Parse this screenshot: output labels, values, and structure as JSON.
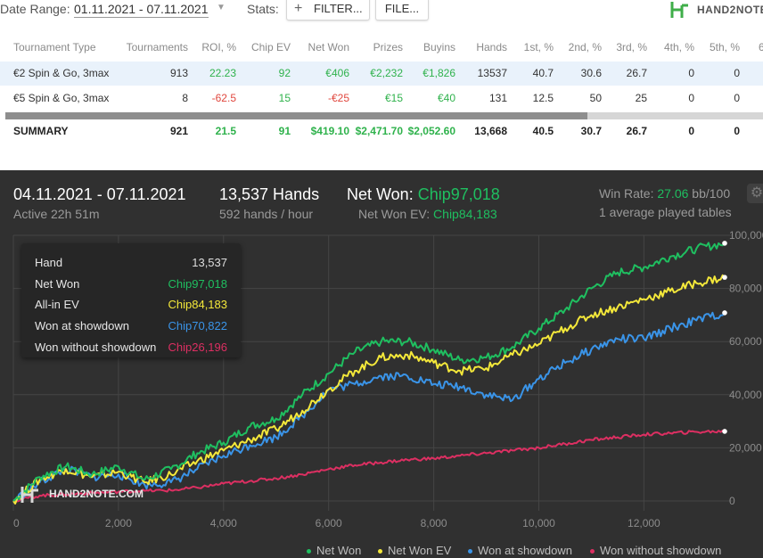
{
  "topbar": {
    "date_label": "Date Range:",
    "date_value": "01.11.2021 - 07.11.2021",
    "stats_label": "Stats:",
    "filter_label": "FILTER...",
    "file_label": "FILE...",
    "brand": "HAND2NOTE.C"
  },
  "table": {
    "headers": [
      "Tournament Type",
      "Tournaments",
      "ROI, %",
      "Chip EV",
      "Net Won",
      "Prizes",
      "Buyins",
      "Hands",
      "1st, %",
      "2nd, %",
      "3rd, %",
      "4th, %",
      "5th, %",
      "6"
    ],
    "rows": [
      [
        "€2 Spin & Go, 3max",
        "913",
        "22.23",
        "92",
        "€406",
        "€2,232",
        "€1,826",
        "13537",
        "40.7",
        "30.6",
        "26.7",
        "0",
        "0",
        ""
      ],
      [
        "€5 Spin & Go, 3max",
        "8",
        "-62.5",
        "15",
        "-€25",
        "€15",
        "€40",
        "131",
        "12.5",
        "50",
        "25",
        "0",
        "0",
        ""
      ]
    ],
    "summary": [
      "SUMMARY",
      "921",
      "21.5",
      "91",
      "$419.10",
      "$2,471.70",
      "$2,052.60",
      "13,668",
      "40.5",
      "30.7",
      "26.7",
      "0",
      "0",
      ""
    ]
  },
  "panel": {
    "date_range": "04.11.2021 - 07.11.2021",
    "active": "Active 22h 51m",
    "hands": "13,537 Hands",
    "hands_per_hour": "592 hands / hour",
    "net_won_label": "Net Won:",
    "net_won_value": "Chip97,018",
    "net_won_ev_label": "Net Won  EV:",
    "net_won_ev_value": "Chip84,183",
    "win_rate_label": "Win Rate:",
    "win_rate_value": "27.06",
    "win_rate_unit": "bb/100",
    "tables": "1 average played tables",
    "watermark": "HAND2NOTE.COM"
  },
  "tooltip": {
    "rows": [
      {
        "label": "Hand",
        "value": "13,537",
        "color": "#dddddd"
      },
      {
        "label": "Net Won",
        "value": "Chip97,018",
        "color": "#1fbf60"
      },
      {
        "label": "All-in EV",
        "value": "Chip84,183",
        "color": "#f4e83a"
      },
      {
        "label": "Won at showdown",
        "value": "Chip70,822",
        "color": "#3a94e8"
      },
      {
        "label": "Won without showdown",
        "value": "Chip26,196",
        "color": "#dd2f62"
      }
    ]
  },
  "colors": {
    "net_won": "#1fbf60",
    "net_won_ev": "#f4e83a",
    "showdown": "#3a94e8",
    "non_showdown": "#dd2f62",
    "panel_bg": "#303030",
    "grid": "#454545"
  },
  "chart_data": {
    "type": "line",
    "xlabel": "",
    "ylabel": "",
    "xlim": [
      0,
      13537
    ],
    "ylim": [
      0,
      100000
    ],
    "x_ticks": [
      "0",
      "2,000",
      "4,000",
      "6,000",
      "8,000",
      "10,000",
      "12,000"
    ],
    "x_tick_values": [
      0,
      2000,
      4000,
      6000,
      8000,
      10000,
      12000
    ],
    "y_ticks": [
      "0",
      "20,000",
      "40,000",
      "60,000",
      "80,000",
      "100,000"
    ],
    "y_tick_values": [
      0,
      20000,
      40000,
      60000,
      80000,
      100000
    ],
    "grid": true,
    "legend": "bottom-right",
    "x": [
      0,
      500,
      1000,
      1500,
      2000,
      2500,
      3000,
      3500,
      4000,
      4500,
      5000,
      5500,
      6000,
      6500,
      7000,
      7500,
      8000,
      8500,
      9000,
      9500,
      10000,
      10500,
      11000,
      11500,
      12000,
      12500,
      13000,
      13537
    ],
    "series": [
      {
        "name": "Net Won",
        "color": "#1fbf60",
        "values": [
          0,
          9000,
          13000,
          10000,
          13000,
          8000,
          12000,
          18000,
          22000,
          28000,
          31000,
          40000,
          48000,
          56000,
          60000,
          60000,
          57000,
          53000,
          54000,
          58000,
          65000,
          72000,
          80000,
          86000,
          88000,
          92000,
          95000,
          97018
        ]
      },
      {
        "name": "Net Won  EV",
        "color": "#f4e83a",
        "values": [
          0,
          8000,
          12000,
          9000,
          11000,
          7000,
          10000,
          15000,
          19000,
          23000,
          27000,
          34000,
          42000,
          49000,
          54000,
          55000,
          52000,
          49000,
          50000,
          55000,
          59000,
          65000,
          70000,
          73000,
          76000,
          79000,
          82000,
          84183
        ]
      },
      {
        "name": "Won at showdown",
        "color": "#3a94e8",
        "values": [
          0,
          7000,
          12000,
          9000,
          10000,
          6000,
          7000,
          12000,
          17000,
          21000,
          24000,
          32000,
          42000,
          44000,
          47000,
          47000,
          44000,
          43000,
          40000,
          38000,
          46000,
          52000,
          57000,
          61000,
          61000,
          65000,
          68000,
          70822
        ]
      },
      {
        "name": "Won without showdown",
        "color": "#dd2f62",
        "values": [
          0,
          2000,
          2500,
          3000,
          3500,
          3800,
          4000,
          5000,
          6500,
          7500,
          8500,
          10000,
          12000,
          13500,
          14500,
          15500,
          16000,
          17000,
          18000,
          19000,
          20000,
          21500,
          23000,
          24000,
          25000,
          25500,
          26000,
          26196
        ]
      }
    ]
  }
}
